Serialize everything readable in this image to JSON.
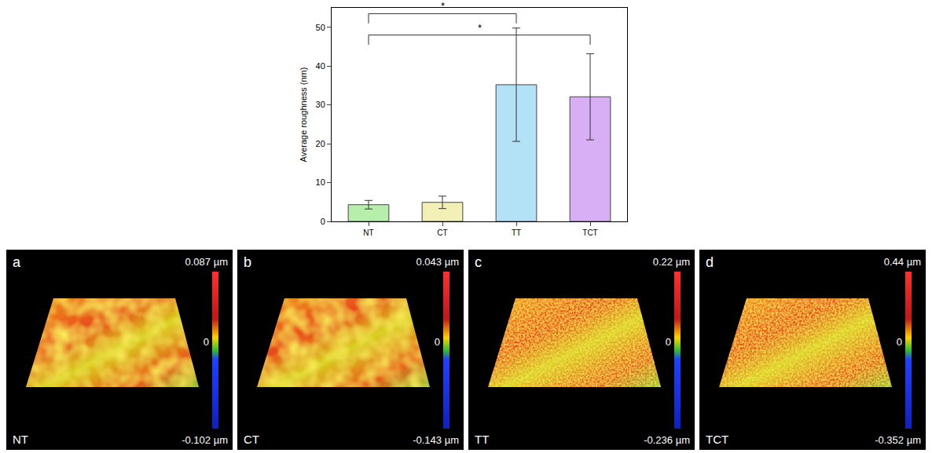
{
  "chart_data": {
    "type": "bar",
    "y_label": "Average roughness (nm)",
    "categories": [
      "NT",
      "CT",
      "TT",
      "TCT"
    ],
    "values": [
      4.3,
      4.9,
      35.2,
      32.1
    ],
    "errors": [
      1.1,
      1.6,
      14.6,
      11.1
    ],
    "colors": [
      "#b5efab",
      "#f3f0b5",
      "#b3e2f7",
      "#d8aef5"
    ],
    "ylim": [
      0,
      55
    ],
    "yticks": [
      0,
      10,
      20,
      30,
      40,
      50
    ],
    "grid": false,
    "annotations": [
      {
        "text": "*",
        "from": "NT",
        "to": "TT",
        "y": 53.5
      },
      {
        "text": "*",
        "from": "NT",
        "to": "TCT",
        "y": 48
      }
    ]
  },
  "panels": [
    {
      "letter": "a",
      "label": "NT",
      "max": "0.087 µm",
      "zero": "0",
      "min": "-0.102 µm"
    },
    {
      "letter": "b",
      "label": "CT",
      "max": "0.043 µm",
      "zero": "0",
      "min": "-0.143 µm"
    },
    {
      "letter": "c",
      "label": "TT",
      "max": "0.22 µm",
      "zero": "0",
      "min": "-0.236 µm"
    },
    {
      "letter": "d",
      "label": "TCT",
      "max": "0.44 µm",
      "zero": "0",
      "min": "-0.352 µm"
    }
  ]
}
